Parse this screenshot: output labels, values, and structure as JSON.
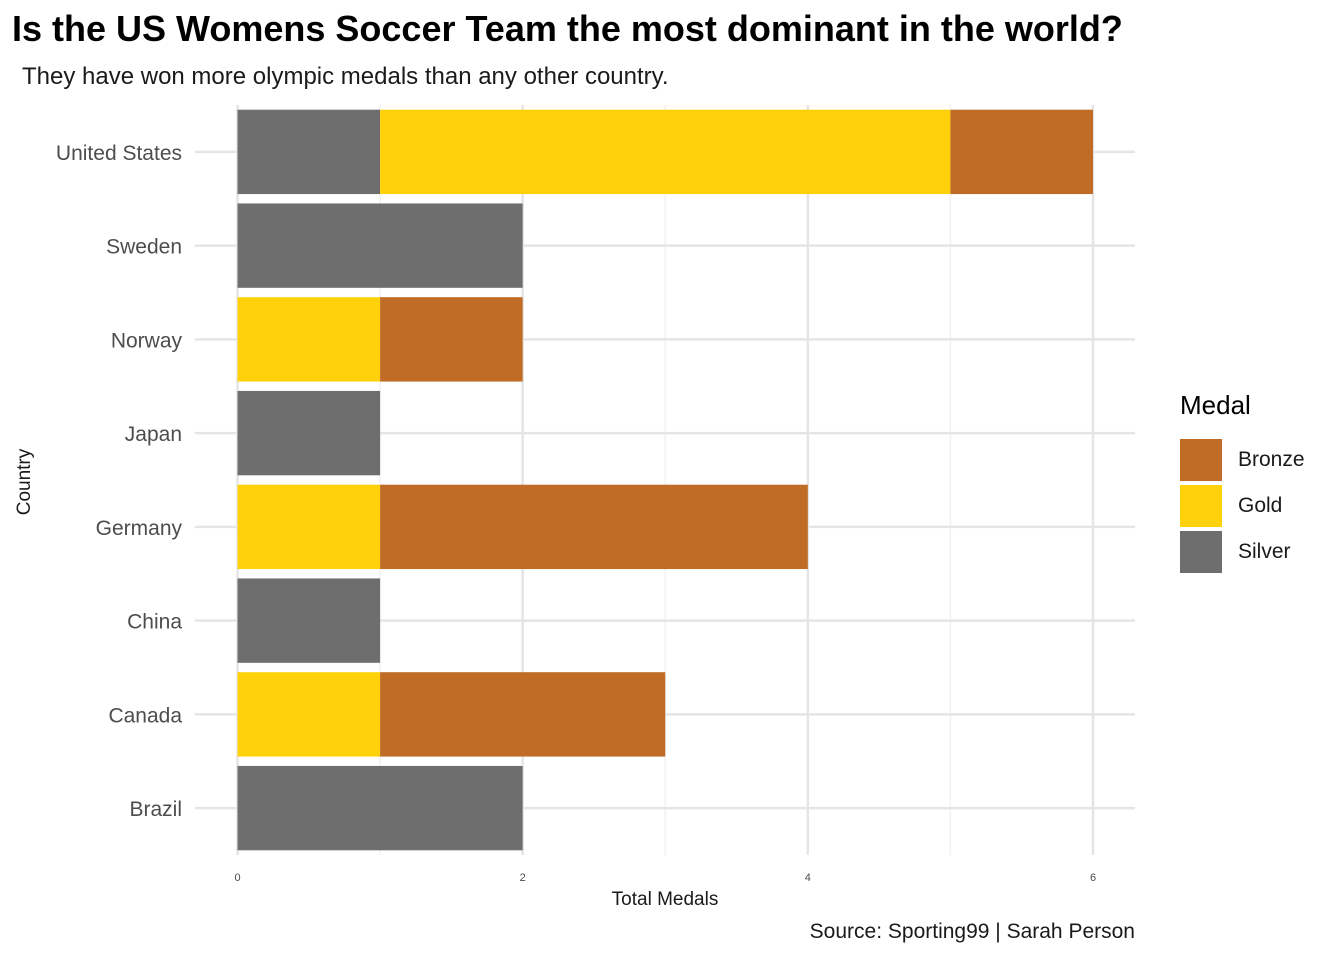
{
  "title": "Is the US Womens Soccer Team the most dominant in the world?",
  "subtitle": "They have won more olympic medals than any other country.",
  "caption": "Source: Sporting99 | Sarah Person",
  "chart_data": {
    "type": "bar",
    "orientation": "horizontal",
    "stacked": true,
    "xlabel": "Total Medals",
    "ylabel": "Country",
    "xlim": [
      0,
      6.3
    ],
    "xticks": [
      0,
      2,
      4,
      6
    ],
    "grid": true,
    "legend_position": "right",
    "legend_title": "Medal",
    "categories": [
      "United States",
      "Sweden",
      "Norway",
      "Japan",
      "Germany",
      "China",
      "Canada",
      "Brazil"
    ],
    "stack_order": [
      "Silver",
      "Gold",
      "Bronze"
    ],
    "series": [
      {
        "name": "Bronze",
        "color": "#C06C27",
        "values": [
          1,
          0,
          1,
          0,
          3,
          0,
          2,
          0
        ]
      },
      {
        "name": "Gold",
        "color": "#FFD10A",
        "values": [
          4,
          0,
          1,
          0,
          1,
          0,
          1,
          0
        ]
      },
      {
        "name": "Silver",
        "color": "#6E6E6E",
        "values": [
          1,
          2,
          0,
          1,
          0,
          1,
          0,
          2
        ]
      }
    ]
  }
}
